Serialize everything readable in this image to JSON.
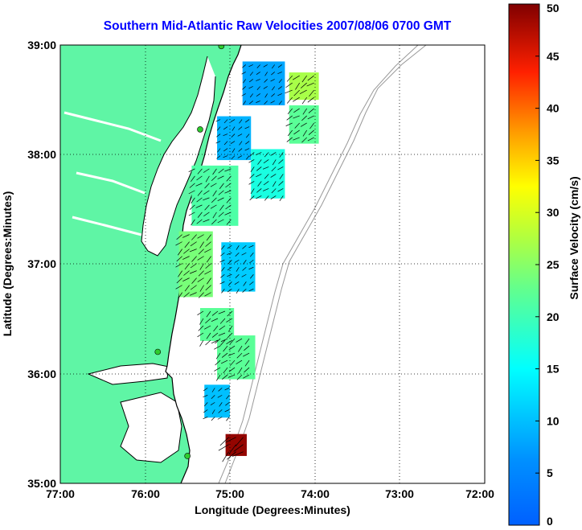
{
  "title": "Southern Mid-Atlantic Raw Velocities 2007/08/06 0700 GMT",
  "x_axis": {
    "label": "Longitude (Degrees:Minutes)",
    "ticks": [
      "77:00",
      "76:00",
      "75:00",
      "74:00",
      "73:00",
      "72:00"
    ]
  },
  "y_axis": {
    "label": "Latitude (Degrees:Minutes)",
    "ticks": [
      "39:00",
      "38:00",
      "37:00",
      "36:00",
      "35:00"
    ]
  },
  "colorbar": {
    "label": "Surface Velocity (cm/s)",
    "ticks": [
      "50",
      "45",
      "40",
      "35",
      "30",
      "25",
      "20",
      "15",
      "10",
      "5",
      "0"
    ],
    "min": 0,
    "max": 50,
    "colormap": "jet"
  },
  "map": {
    "lon_range": [
      -77,
      -72
    ],
    "lat_range": [
      35,
      39
    ],
    "land_color": "#5ff5a5",
    "grid": "dotted",
    "station_color": "#2ecc2e",
    "stations": [
      {
        "lon": -75.1,
        "lat": 38.99
      },
      {
        "lon": -75.35,
        "lat": 38.23
      },
      {
        "lon": -75.85,
        "lat": 36.2
      },
      {
        "lon": -75.5,
        "lat": 35.25
      }
    ]
  },
  "chart_data": {
    "type": "vector-field",
    "title": "Southern Mid-Atlantic Raw Velocities 2007/08/06 0700 GMT",
    "xlabel": "Longitude (Degrees:Minutes)",
    "ylabel": "Latitude (Degrees:Minutes)",
    "xlim": [
      -77,
      -72
    ],
    "ylim": [
      35,
      39
    ],
    "color_scale": {
      "label": "Surface Velocity (cm/s)",
      "min": 0,
      "max": 50
    },
    "regions": [
      {
        "lon": [
          -74.85,
          -74.35
        ],
        "lat": [
          38.45,
          38.85
        ],
        "speed": 8
      },
      {
        "lon": [
          -74.3,
          -73.95
        ],
        "lat": [
          38.5,
          38.75
        ],
        "speed": 27
      },
      {
        "lon": [
          -74.3,
          -73.95
        ],
        "lat": [
          38.1,
          38.45
        ],
        "speed": 22
      },
      {
        "lon": [
          -75.15,
          -74.75
        ],
        "lat": [
          37.95,
          38.35
        ],
        "speed": 9
      },
      {
        "lon": [
          -74.75,
          -74.35
        ],
        "lat": [
          37.6,
          38.05
        ],
        "speed": 17
      },
      {
        "lon": [
          -75.45,
          -74.9
        ],
        "lat": [
          37.35,
          37.9
        ],
        "speed": 21
      },
      {
        "lon": [
          -75.6,
          -75.2
        ],
        "lat": [
          36.7,
          37.3
        ],
        "speed": 24
      },
      {
        "lon": [
          -75.1,
          -74.7
        ],
        "lat": [
          36.75,
          37.2
        ],
        "speed": 11
      },
      {
        "lon": [
          -75.35,
          -74.95
        ],
        "lat": [
          36.3,
          36.6
        ],
        "speed": 22
      },
      {
        "lon": [
          -75.15,
          -74.7
        ],
        "lat": [
          35.95,
          36.35
        ],
        "speed": 22
      },
      {
        "lon": [
          -75.3,
          -75.0
        ],
        "lat": [
          35.6,
          35.9
        ],
        "speed": 10
      },
      {
        "lon": [
          -75.05,
          -74.8
        ],
        "lat": [
          35.25,
          35.45
        ],
        "speed": 49
      }
    ],
    "dominant_flow": "southwestward along shelf"
  }
}
